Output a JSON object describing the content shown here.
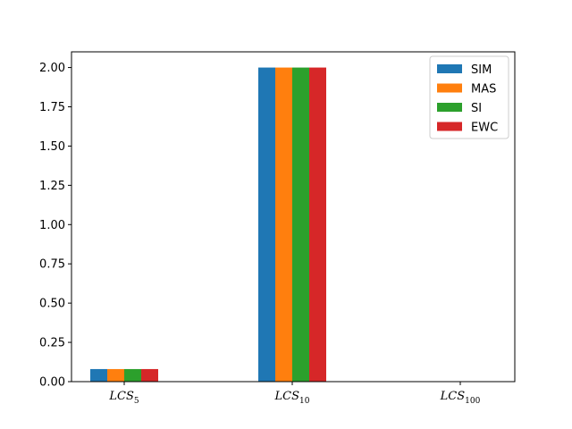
{
  "chart_data": {
    "type": "bar",
    "categories": [
      {
        "base": "LCS",
        "sub": "5"
      },
      {
        "base": "LCS",
        "sub": "10"
      },
      {
        "base": "LCS",
        "sub": "100"
      }
    ],
    "series": [
      {
        "name": "SIM",
        "color": "#1f77b4",
        "values": [
          0.08,
          2.0,
          0.0
        ]
      },
      {
        "name": "MAS",
        "color": "#ff7f0e",
        "values": [
          0.08,
          2.0,
          0.0
        ]
      },
      {
        "name": "SI",
        "color": "#2ca02c",
        "values": [
          0.08,
          2.0,
          0.0
        ]
      },
      {
        "name": "EWC",
        "color": "#d62728",
        "values": [
          0.08,
          2.0,
          0.0
        ]
      }
    ],
    "ylim": [
      0,
      2.1
    ],
    "yticks": [
      "0.00",
      "0.25",
      "0.50",
      "0.75",
      "1.00",
      "1.25",
      "1.50",
      "1.75",
      "2.00"
    ],
    "grid": false,
    "legend_position": "top-right",
    "title": "",
    "xlabel": "",
    "ylabel": ""
  }
}
